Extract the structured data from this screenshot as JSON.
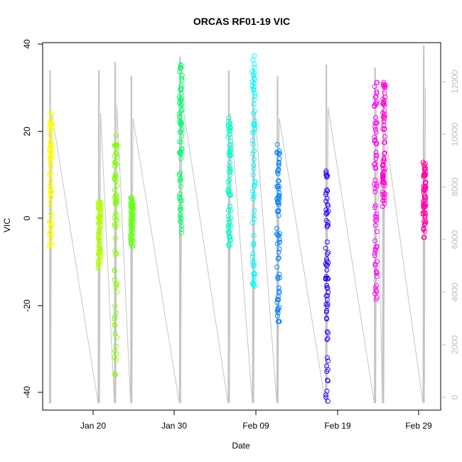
{
  "chart_data": {
    "type": "scatter",
    "title": "ORCAS RF01-19 VIC",
    "xlabel": "Date",
    "ylabel": "VIC",
    "x_ticks": [
      "Jan 20",
      "Jan 30",
      "Feb 09",
      "Feb 19",
      "Feb 29"
    ],
    "y_ticks": [
      "40",
      "20",
      "0",
      "-20",
      "-40"
    ],
    "y_right_ticks": [
      "12000",
      "10000",
      "8000",
      "6000",
      "4000",
      "2000",
      "0"
    ],
    "xlim": [
      "2016-01-14",
      "2016-03-03"
    ],
    "ylim": [
      -43,
      40
    ],
    "y_right_lim": [
      -250,
      13000
    ],
    "right_axis_color": "#bdbdbd",
    "altitude_line_color": "#c4c4c4",
    "flights": [
      {
        "date": "2016-01-15",
        "color": "#ffff00",
        "vic_range": [
          -6,
          24
        ],
        "alt_max": 12000
      },
      {
        "date": "2016-01-21",
        "color": "#b3ff00",
        "vic_range": [
          -11,
          4
        ],
        "alt_max": 12000
      },
      {
        "date": "2016-01-23",
        "color": "#80ff00",
        "vic_range": [
          -35,
          19
        ],
        "alt_max": 12300
      },
      {
        "date": "2016-01-25",
        "color": "#66ff1a",
        "vic_range": [
          -6,
          5
        ],
        "alt_max": 11800
      },
      {
        "date": "2016-01-31",
        "color": "#00ff66",
        "vic_range": [
          -3,
          35
        ],
        "alt_max": 12500
      },
      {
        "date": "2016-02-06",
        "color": "#00ffcc",
        "vic_range": [
          -6,
          23
        ],
        "alt_max": 12000
      },
      {
        "date": "2016-02-09",
        "color": "#00ffff",
        "vic_range": [
          -15,
          37
        ],
        "alt_max": 12100
      },
      {
        "date": "2016-02-12",
        "color": "#0080ff",
        "vic_range": [
          -23,
          17
        ],
        "alt_max": 11800
      },
      {
        "date": "2016-02-18",
        "color": "#3300ff",
        "vic_range": [
          -41,
          11
        ],
        "alt_max": 12200
      },
      {
        "date": "2016-02-24",
        "color": "#ff00ff",
        "vic_range": [
          -18,
          31
        ],
        "alt_max": 12100
      },
      {
        "date": "2016-02-25",
        "color": "#ff00d5",
        "vic_range": [
          3,
          31
        ],
        "alt_max": 11400
      },
      {
        "date": "2016-03-01",
        "color": "#ff00aa",
        "vic_range": [
          -4,
          13
        ],
        "alt_max": 12900
      }
    ]
  }
}
